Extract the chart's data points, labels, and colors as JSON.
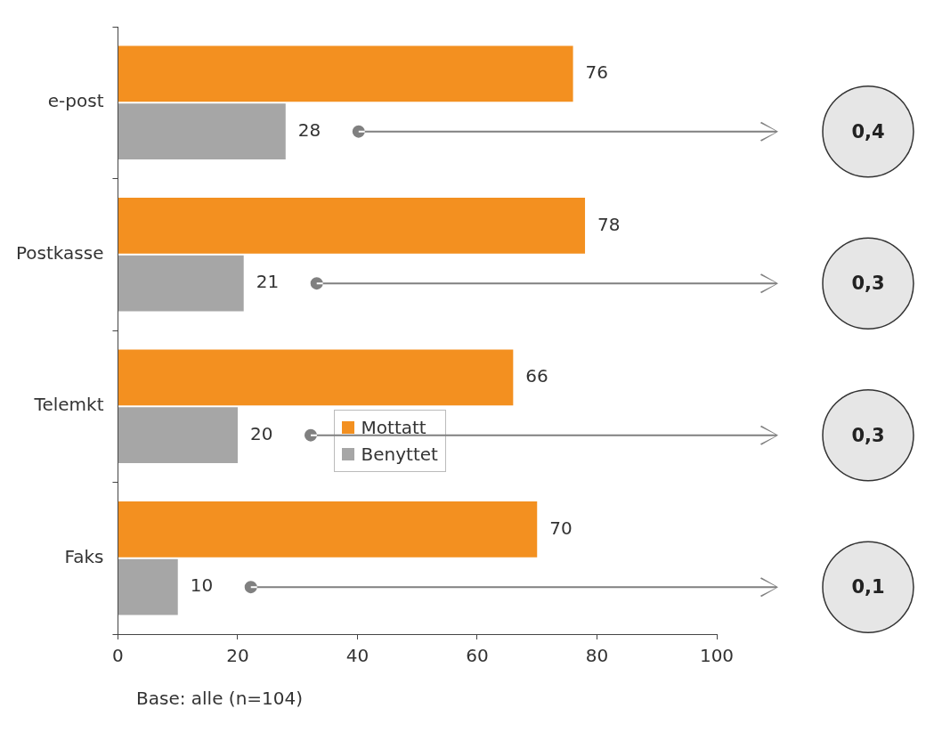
{
  "chart_data": {
    "type": "bar",
    "orientation": "horizontal",
    "categories": [
      "e-post",
      "Postkasse",
      "Telemkt",
      "Faks"
    ],
    "series": [
      {
        "name": "Mottatt",
        "color": "#f39020",
        "values": [
          76,
          78,
          66,
          70
        ]
      },
      {
        "name": "Benyttet",
        "color": "#a6a6a6",
        "values": [
          28,
          21,
          20,
          10
        ]
      }
    ],
    "xlim": [
      0,
      100
    ],
    "xticks": [
      0,
      20,
      40,
      60,
      80,
      100
    ],
    "grid": false,
    "legend": "center",
    "data_labels": true,
    "annotations": [
      "0,4",
      "0,3",
      "0,3",
      "0,1",
      "Base: alle (n=104)"
    ]
  }
}
